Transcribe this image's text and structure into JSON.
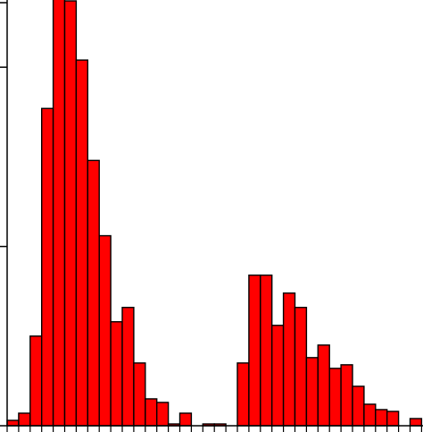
{
  "chart_data": {
    "type": "bar",
    "subtype": "histogram",
    "title": "",
    "xlabel": "",
    "ylabel": "",
    "grid": false,
    "legend": "none",
    "bar_color": "#ff0000",
    "edge_color": "#000000",
    "bins": 36,
    "ylim": [
      0,
      200
    ],
    "y_major_ticks": [
      0,
      100,
      200
    ],
    "values": [
      3,
      7,
      50,
      177,
      307,
      237,
      204,
      148,
      106,
      58,
      66,
      35,
      15,
      13,
      1,
      7,
      0,
      1,
      1,
      0,
      35,
      84,
      84,
      56,
      74,
      66,
      38,
      45,
      32,
      34,
      22,
      12,
      9,
      8,
      0,
      4
    ]
  }
}
